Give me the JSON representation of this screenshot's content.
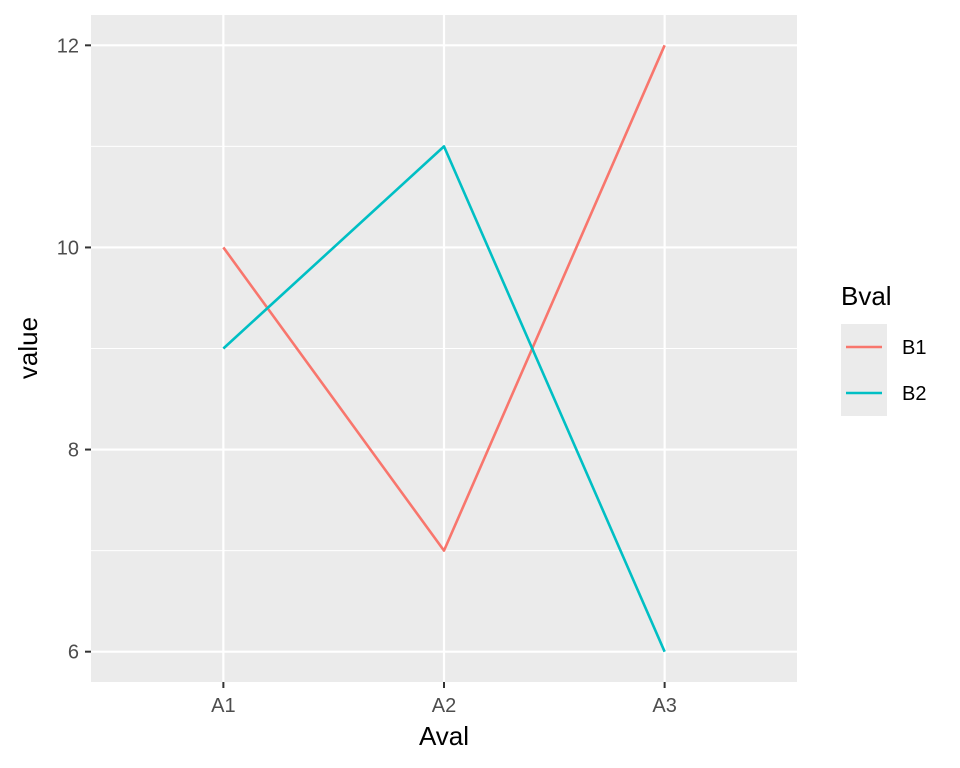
{
  "chart_data": {
    "type": "line",
    "categories": [
      "A1",
      "A2",
      "A3"
    ],
    "series": [
      {
        "name": "B1",
        "values": [
          10,
          7,
          12
        ],
        "color": "#F8766D"
      },
      {
        "name": "B2",
        "values": [
          9,
          11,
          6
        ],
        "color": "#00BFC4"
      }
    ],
    "xlabel": "Aval",
    "ylabel": "value",
    "ylim": [
      5.7,
      12.3
    ],
    "yticks": [
      6,
      8,
      10,
      12
    ],
    "legend": {
      "title": "Bval",
      "position": "right"
    },
    "grid": true,
    "panel_background": "#EBEBEB"
  }
}
